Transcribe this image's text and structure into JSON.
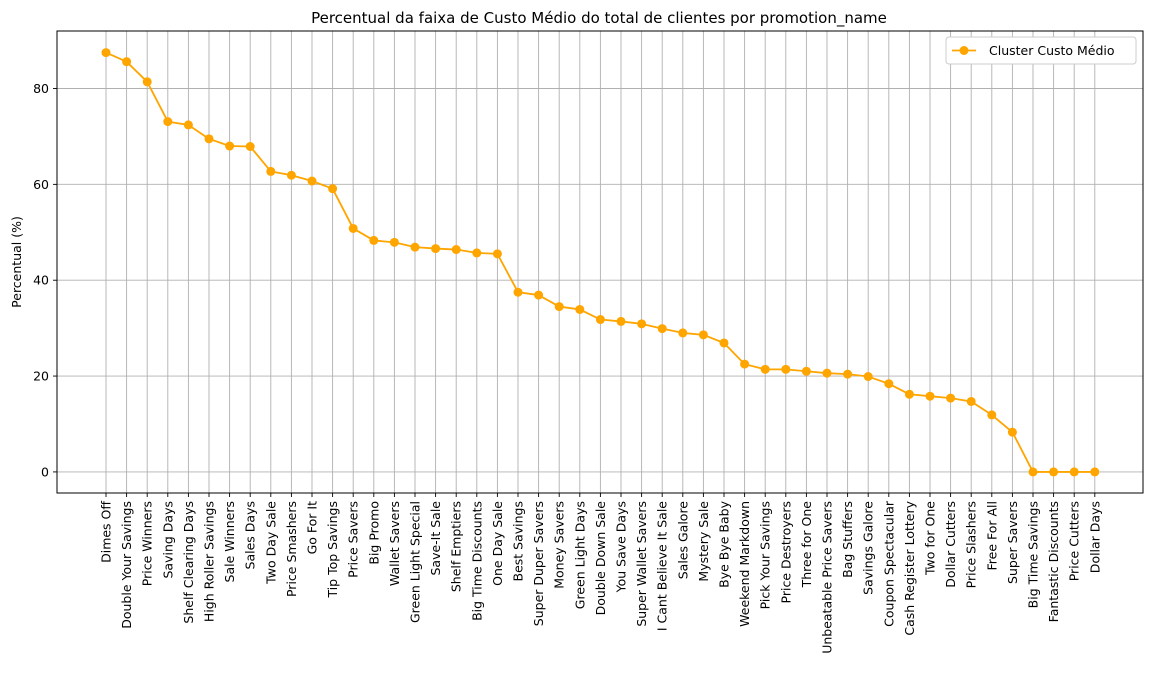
{
  "chart_data": {
    "type": "line",
    "title": "Percentual da faixa de Custo Médio do total de clientes por promotion_name",
    "xlabel": "",
    "ylabel": "Percentual (%)",
    "ylim": [
      -4.4,
      92
    ],
    "yticks": [
      0,
      20,
      40,
      60,
      80
    ],
    "grid": true,
    "legend_position": "top-right",
    "line_color": "#ffa500",
    "categories": [
      "Dimes Off",
      "Double Your Savings",
      "Price Winners",
      "Saving Days",
      "Shelf Clearing Days",
      "High Roller Savings",
      "Sale Winners",
      "Sales Days",
      "Two Day Sale",
      "Price Smashers",
      "Go For It",
      "Tip Top Savings",
      "Price Savers",
      "Big Promo",
      "Wallet Savers",
      "Green Light Special",
      "Save-It Sale",
      "Shelf Emptiers",
      "Big Time Discounts",
      "One Day Sale",
      "Best Savings",
      "Super Duper Savers",
      "Money Savers",
      "Green Light Days",
      "Double Down Sale",
      "You Save Days",
      "Super Wallet Savers",
      "I Cant Believe It Sale",
      "Sales Galore",
      "Mystery Sale",
      "Bye Bye Baby",
      "Weekend Markdown",
      "Pick Your Savings",
      "Price Destroyers",
      "Three for One",
      "Unbeatable Price Savers",
      "Bag Stuffers",
      "Savings Galore",
      "Coupon Spectacular",
      "Cash Register Lottery",
      "Two for One",
      "Dollar Cutters",
      "Price Slashers",
      "Free For All",
      "Super Savers",
      "Big Time Savings",
      "Fantastic Discounts",
      "Price Cutters",
      "Dollar Days"
    ],
    "series": [
      {
        "name": "Cluster Custo Médio",
        "values": [
          87.5,
          85.6,
          81.4,
          73.1,
          72.4,
          69.5,
          68.0,
          67.9,
          62.7,
          61.9,
          60.7,
          59.1,
          50.8,
          48.3,
          47.9,
          46.9,
          46.6,
          46.4,
          45.7,
          45.5,
          37.5,
          36.9,
          34.5,
          33.9,
          31.8,
          31.4,
          30.9,
          29.9,
          29.0,
          28.6,
          26.9,
          22.5,
          21.4,
          21.4,
          21.0,
          20.6,
          20.4,
          19.9,
          18.4,
          16.2,
          15.8,
          15.4,
          14.7,
          11.9,
          8.3,
          0.0,
          0.0,
          0.0,
          0.0
        ]
      }
    ]
  }
}
